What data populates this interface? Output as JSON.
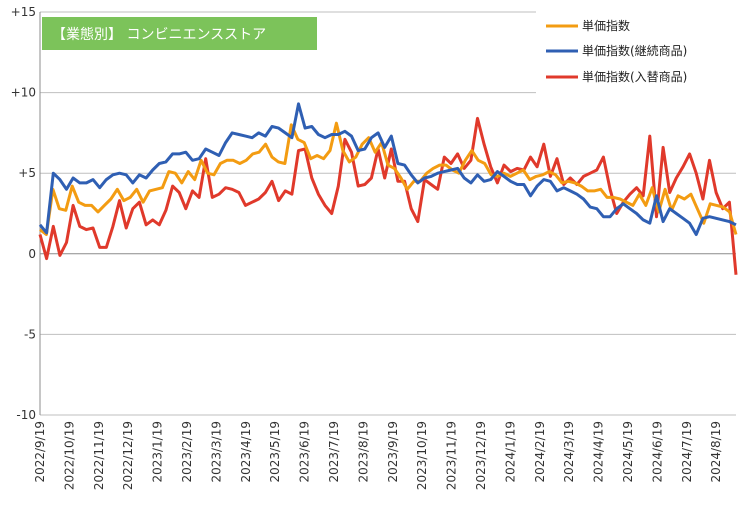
{
  "chart_data": {
    "type": "line",
    "title": "【業態別】 コンビニエンスストア",
    "badge_color": "#7CC35A",
    "y_ticks": [
      "+15",
      "+10",
      "+5",
      "0",
      "-5",
      "-10"
    ],
    "ylim": [
      -10,
      15
    ],
    "grid": true,
    "legend_placement": "top-right",
    "x_tick_labels": [
      "2022/9/19",
      "2022/10/19",
      "2022/11/19",
      "2022/12/19",
      "2023/1/19",
      "2023/2/19",
      "2023/3/19",
      "2023/4/19",
      "2023/5/19",
      "2023/6/19",
      "2023/7/19",
      "2023/8/19",
      "2023/9/19",
      "2023/10/19",
      "2023/11/19",
      "2023/12/19",
      "2024/1/19",
      "2024/2/19",
      "2024/3/19",
      "2024/4/19",
      "2024/5/19",
      "2024/6/19",
      "2024/7/19",
      "2024/8/19"
    ],
    "series": [
      {
        "name": "単価指数",
        "color": "#F39C12",
        "values": [
          1.5,
          1.2,
          4.0,
          2.8,
          2.7,
          4.2,
          3.2,
          3.0,
          3.0,
          2.6,
          3.0,
          3.4,
          4.0,
          3.3,
          3.5,
          4.0,
          3.2,
          3.9,
          4.0,
          4.1,
          5.1,
          5.0,
          4.4,
          5.1,
          4.6,
          5.8,
          5.0,
          4.9,
          5.6,
          5.8,
          5.8,
          5.6,
          5.8,
          6.2,
          6.3,
          6.8,
          6.0,
          5.7,
          5.6,
          8.0,
          7.1,
          6.9,
          5.9,
          6.1,
          5.9,
          6.4,
          8.1,
          6.4,
          5.7,
          6.0,
          6.8,
          7.2,
          6.3,
          6.9,
          5.5,
          5.3,
          4.7,
          4.0,
          4.5,
          4.5,
          5.0,
          5.3,
          5.5,
          5.5,
          5.2,
          5.0,
          5.8,
          6.4,
          5.8,
          5.6,
          4.9,
          4.8,
          5.0,
          4.8,
          5.0,
          5.2,
          4.6,
          4.8,
          4.9,
          5.1,
          4.9,
          4.4,
          4.5,
          4.4,
          4.2,
          3.9,
          3.9,
          4.0,
          3.5,
          3.5,
          3.4,
          3.2,
          3.0,
          3.7,
          3.0,
          4.1,
          2.6,
          4.0,
          2.7,
          3.6,
          3.4,
          3.7,
          2.8,
          1.9,
          3.1,
          3.0,
          2.9,
          2.6,
          1.2
        ]
      },
      {
        "name": "単価指数(継続商品)",
        "color": "#2F5FB3",
        "values": [
          1.8,
          1.3,
          5.0,
          4.6,
          4.0,
          4.7,
          4.4,
          4.4,
          4.6,
          4.1,
          4.6,
          4.9,
          5.0,
          4.9,
          4.4,
          4.9,
          4.7,
          5.2,
          5.6,
          5.7,
          6.2,
          6.2,
          6.3,
          5.8,
          5.9,
          6.5,
          6.3,
          6.1,
          6.9,
          7.5,
          7.4,
          7.3,
          7.2,
          7.5,
          7.3,
          7.9,
          7.8,
          7.5,
          7.2,
          9.3,
          7.8,
          7.9,
          7.4,
          7.2,
          7.4,
          7.4,
          7.6,
          7.3,
          6.4,
          6.5,
          7.2,
          7.5,
          6.6,
          7.3,
          5.6,
          5.5,
          4.9,
          4.4,
          4.7,
          4.8,
          5.0,
          5.1,
          5.2,
          5.3,
          4.7,
          4.4,
          4.9,
          4.5,
          4.6,
          5.1,
          4.8,
          4.5,
          4.3,
          4.3,
          3.6,
          4.2,
          4.6,
          4.5,
          3.9,
          4.1,
          3.9,
          3.7,
          3.4,
          2.9,
          2.8,
          2.3,
          2.3,
          2.8,
          3.1,
          2.8,
          2.5,
          2.1,
          1.9,
          3.6,
          2.0,
          2.8,
          2.5,
          2.2,
          1.9,
          1.2,
          2.2,
          2.3,
          2.2,
          2.1,
          2.0,
          1.8
        ]
      },
      {
        "name": "単価指数(入替商品)",
        "color": "#E0392B",
        "values": [
          1.2,
          -0.3,
          1.7,
          -0.1,
          0.7,
          3.0,
          1.7,
          1.5,
          1.6,
          0.4,
          0.4,
          1.7,
          3.3,
          1.6,
          2.8,
          3.2,
          1.8,
          2.1,
          1.8,
          2.7,
          4.2,
          3.8,
          2.8,
          3.9,
          3.5,
          5.9,
          3.5,
          3.7,
          4.1,
          4.0,
          3.8,
          3.0,
          3.2,
          3.4,
          3.8,
          4.5,
          3.3,
          3.9,
          3.7,
          6.4,
          6.5,
          4.7,
          3.7,
          3.0,
          2.5,
          4.2,
          7.1,
          6.3,
          4.2,
          4.3,
          4.7,
          6.5,
          4.7,
          6.5,
          4.5,
          4.5,
          2.8,
          2.0,
          4.6,
          4.3,
          4.0,
          6.0,
          5.6,
          6.2,
          5.3,
          5.8,
          8.4,
          6.8,
          5.4,
          4.4,
          5.5,
          5.1,
          5.3,
          5.2,
          6.0,
          5.4,
          6.8,
          4.8,
          5.9,
          4.3,
          4.7,
          4.3,
          4.8,
          5.0,
          5.2,
          6.0,
          4.0,
          2.5,
          3.2,
          3.7,
          4.1,
          3.6,
          7.3,
          2.3,
          6.6,
          3.8,
          4.7,
          5.4,
          6.2,
          5.0,
          3.4,
          5.8,
          3.8,
          2.8,
          3.2,
          -1.3
        ]
      }
    ]
  }
}
